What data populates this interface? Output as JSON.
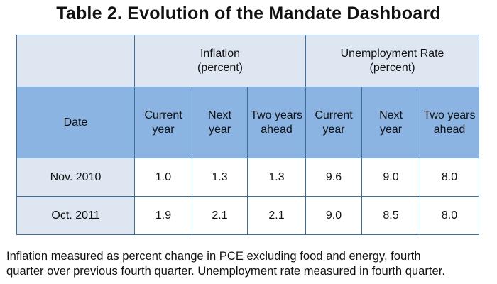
{
  "title": "Table 2. Evolution of the Mandate Dashboard",
  "table": {
    "corner": "",
    "groups": [
      {
        "label": "Inflation\n(percent)"
      },
      {
        "label": "Unemployment Rate\n(percent)"
      }
    ],
    "date_header": "Date",
    "subheaders": [
      "Current\nyear",
      "Next\nyear",
      "Two years\nahead",
      "Current\nyear",
      "Next\nyear",
      "Two years\nahead"
    ],
    "rows": [
      {
        "date": "Nov. 2010",
        "values": [
          "1.0",
          "1.3",
          "1.3",
          "9.6",
          "9.0",
          "8.0"
        ]
      },
      {
        "date": "Oct. 2011",
        "values": [
          "1.9",
          "2.1",
          "2.1",
          "9.0",
          "8.5",
          "8.0"
        ]
      }
    ]
  },
  "footnote": {
    "line1": "Inflation measured as percent change in PCE excluding food and energy, fourth",
    "line2": "quarter over previous fourth quarter.  Unemployment rate measured in fourth quarter."
  },
  "colors": {
    "light_band": "#dde6f1",
    "header_band": "#8cb4e2",
    "border": "#3d6f9c"
  }
}
